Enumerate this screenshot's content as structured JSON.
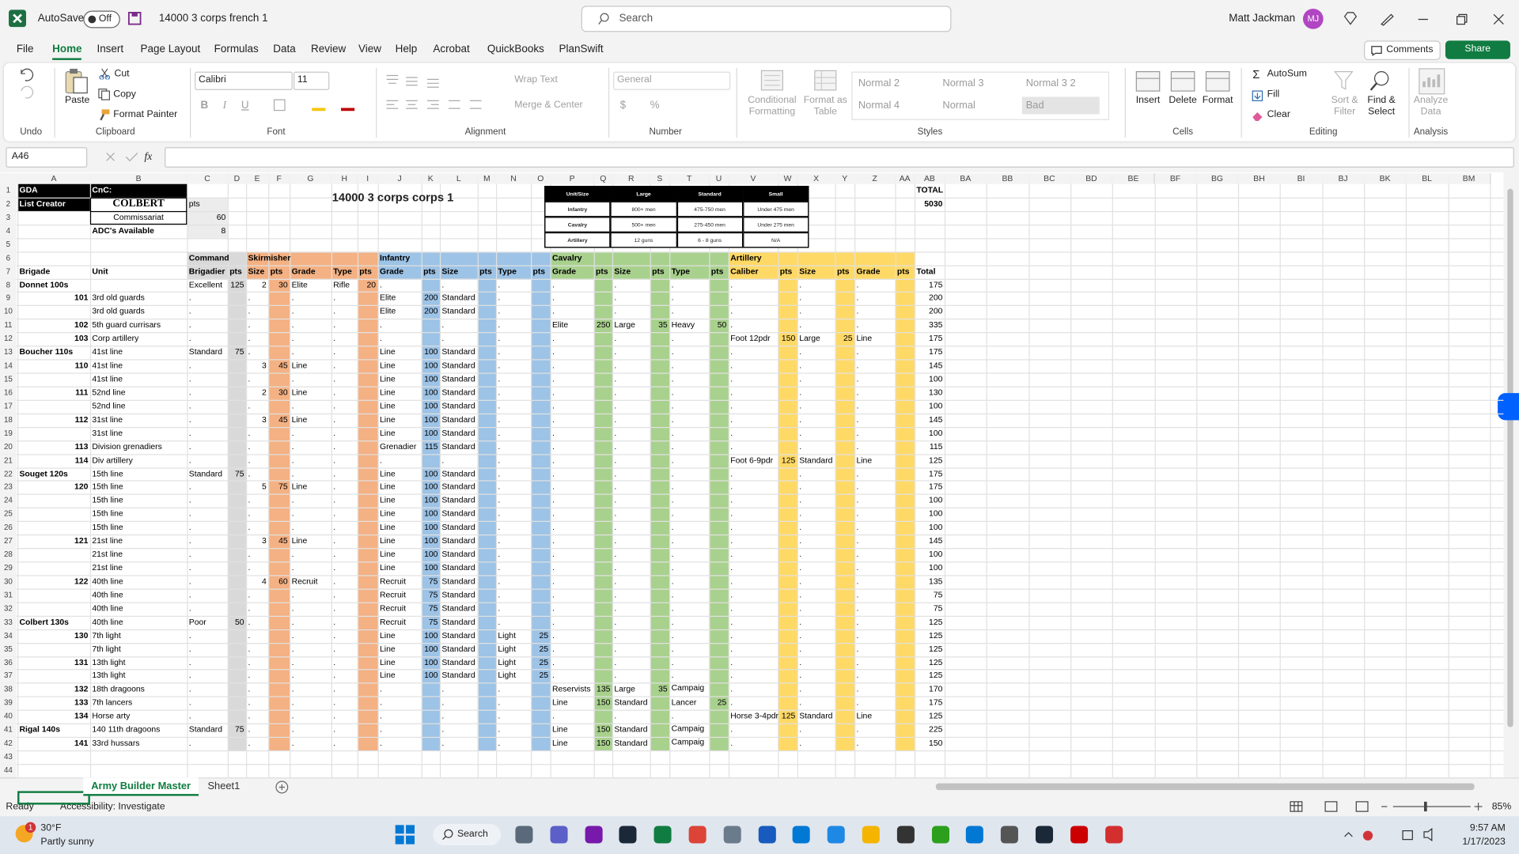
{
  "title_bar": {
    "autosave": "AutoSave",
    "toggle": "Off",
    "file_name": "14000 3 corps french 1",
    "search": "Search",
    "user": "Matt Jackman",
    "initials": "MJ"
  },
  "menu": {
    "tabs": [
      "File",
      "Home",
      "Insert",
      "Page Layout",
      "Formulas",
      "Data",
      "Review",
      "View",
      "Help",
      "Acrobat",
      "QuickBooks",
      "PlanSwift"
    ],
    "comments": "Comments",
    "share": "Share"
  },
  "ribbon": {
    "undo": {
      "label": "Undo"
    },
    "clipboard": {
      "paste": "Paste",
      "cut": "Cut",
      "copy": "Copy",
      "format_painter": "Format Painter",
      "label": "Clipboard"
    },
    "font": {
      "name": "Calibri",
      "size": "11",
      "bold": "B",
      "italic": "I",
      "underline": "U",
      "label": "Font"
    },
    "alignment": {
      "wrap": "Wrap Text",
      "merge": "Merge & Center",
      "label": "Alignment"
    },
    "number": {
      "format": "General",
      "currency": "$",
      "percent": "%",
      "label": "Number"
    },
    "styles": {
      "conditional": "Conditional Formatting",
      "table": "Format as Table",
      "gallery": [
        "Normal 2",
        "Normal 3",
        "Normal 3 2",
        "Normal 4",
        "Normal",
        "Bad"
      ],
      "label": "Styles"
    },
    "cells": {
      "insert": "Insert",
      "delete": "Delete",
      "format": "Format",
      "label": "Cells"
    },
    "editing": {
      "autosum": "AutoSum",
      "fill": "Fill",
      "clear": "Clear",
      "sort": "Sort & Filter",
      "find": "Find & Select",
      "label": "Editing"
    },
    "analysis": {
      "analyze": "Analyze Data",
      "label": "Analysis"
    }
  },
  "formula_bar": {
    "name_box": "A46",
    "fx": "fx"
  },
  "sheet": {
    "columns": [
      "A",
      "B",
      "C",
      "D",
      "E",
      "F",
      "G",
      "H",
      "I",
      "J",
      "K",
      "L",
      "M",
      "N",
      "O",
      "P",
      "Q",
      "R",
      "S",
      "T",
      "U",
      "V",
      "W",
      "X",
      "Y",
      "Z",
      "AA",
      "AB",
      "BA",
      "BB",
      "BC",
      "BD",
      "BE",
      "BF",
      "BG",
      "BH",
      "BI",
      "BJ",
      "BK",
      "BL",
      "BM"
    ],
    "row_numbers": [
      1,
      2,
      3,
      4,
      5,
      6,
      7,
      8,
      9,
      10,
      11,
      12,
      13,
      14,
      15,
      16,
      17,
      18,
      19,
      20,
      21,
      22,
      23,
      24,
      25,
      26,
      27,
      28,
      29,
      30,
      31,
      32,
      33,
      34,
      35,
      36,
      37,
      38,
      39,
      40,
      41,
      42,
      43,
      44
    ],
    "title": "14000 3 corps corps 1",
    "size_table": [
      [
        "Unit/Size",
        "Large",
        "Standard",
        "Small"
      ],
      [
        "Infantry",
        "800+ men",
        "475-750 men",
        "Under 475 men"
      ],
      [
        "Cavalry",
        "500+ men",
        "275-450 men",
        "Under 275 men"
      ],
      [
        "Artillery",
        "12 guns",
        "6 - 8 guns",
        "N/A"
      ]
    ],
    "grid": [
      [
        "GDA",
        "CnC:",
        null,
        null,
        null,
        null,
        null,
        null,
        null,
        null,
        null,
        null,
        null,
        null,
        null,
        null,
        null,
        null,
        null,
        null,
        null,
        null,
        null,
        null,
        null,
        null,
        null,
        "TOTAL"
      ],
      [
        "List Creator",
        "COLBERT",
        "pts",
        null,
        null,
        null,
        null,
        null,
        null,
        null,
        null,
        null,
        null,
        null,
        null,
        null,
        null,
        null,
        null,
        null,
        null,
        null,
        null,
        null,
        null,
        null,
        null,
        5030
      ],
      [
        null,
        "Commissariat",
        60
      ],
      [
        null,
        "ADC's Available",
        8
      ],
      [],
      [
        null,
        null,
        "Command",
        null,
        "Skirmisher",
        null,
        null,
        null,
        null,
        "Infantry",
        null,
        null,
        null,
        null,
        null,
        "Cavalry",
        null,
        null,
        null,
        null,
        null,
        "Artillery"
      ],
      [
        "Brigade",
        "Unit",
        "Brigadier",
        "pts",
        "Size",
        "pts",
        "Grade",
        "Type",
        "pts",
        "Grade",
        "pts",
        "Size",
        "pts",
        "Type",
        "pts",
        "Grade",
        "pts",
        "Size",
        "pts",
        "Type",
        "pts",
        "Caliber",
        "pts",
        "Size",
        "pts",
        "Grade",
        "pts",
        "Total"
      ],
      [
        "Donnet 100s",
        null,
        "Excellent",
        125,
        2,
        30,
        "Elite",
        "Rifle",
        20,
        ".",
        null,
        ".",
        null,
        ".",
        null,
        ".",
        null,
        ".",
        null,
        ".",
        null,
        ".",
        null,
        ".",
        null,
        ".",
        null,
        175
      ],
      [
        101,
        "3rd old guards",
        ".",
        null,
        ".",
        null,
        ".",
        ".",
        null,
        "Elite",
        200,
        "Standard",
        null,
        ".",
        null,
        ".",
        null,
        ".",
        null,
        ".",
        null,
        ".",
        null,
        ".",
        null,
        ".",
        null,
        200
      ],
      [
        null,
        "3rd old guards",
        ".",
        null,
        ".",
        null,
        ".",
        ".",
        null,
        "Elite",
        200,
        "Standard",
        null,
        ".",
        null,
        ".",
        null,
        ".",
        null,
        ".",
        null,
        ".",
        null,
        ".",
        null,
        ".",
        null,
        200
      ],
      [
        102,
        "5th guard currisars",
        ".",
        null,
        ".",
        null,
        ".",
        ".",
        null,
        ".",
        null,
        ".",
        null,
        ".",
        null,
        "Elite",
        250,
        "Large",
        35,
        "Heavy",
        50,
        ".",
        null,
        ".",
        null,
        ".",
        null,
        335
      ],
      [
        103,
        "Corp artillery",
        ".",
        null,
        ".",
        null,
        ".",
        ".",
        null,
        ".",
        null,
        ".",
        null,
        ".",
        null,
        ".",
        null,
        ".",
        null,
        ".",
        null,
        "Foot 12pdr",
        150,
        "Large",
        25,
        "Line",
        null,
        175
      ],
      [
        "Boucher 110s",
        "41st line",
        "Standard",
        75,
        ".",
        null,
        ".",
        ".",
        null,
        "Line",
        100,
        "Standard",
        null,
        ".",
        null,
        ".",
        null,
        ".",
        null,
        ".",
        null,
        ".",
        null,
        ".",
        null,
        ".",
        null,
        175
      ],
      [
        110,
        "41st line",
        ".",
        null,
        3,
        45,
        "Line",
        ".",
        null,
        "Line",
        100,
        "Standard",
        null,
        ".",
        null,
        ".",
        null,
        ".",
        null,
        ".",
        null,
        ".",
        null,
        ".",
        null,
        ".",
        null,
        145
      ],
      [
        null,
        "41st line",
        ".",
        null,
        ".",
        null,
        ".",
        ".",
        null,
        "Line",
        100,
        "Standard",
        null,
        ".",
        null,
        ".",
        null,
        ".",
        null,
        ".",
        null,
        ".",
        null,
        ".",
        null,
        ".",
        null,
        100
      ],
      [
        111,
        "52nd line",
        ".",
        null,
        2,
        30,
        "Line",
        ".",
        null,
        "Line",
        100,
        "Standard",
        null,
        ".",
        null,
        ".",
        null,
        ".",
        null,
        ".",
        null,
        ".",
        null,
        ".",
        null,
        ".",
        null,
        130
      ],
      [
        null,
        "52nd line",
        ".",
        null,
        ".",
        null,
        ".",
        ".",
        null,
        "Line",
        100,
        "Standard",
        null,
        ".",
        null,
        ".",
        null,
        ".",
        null,
        ".",
        null,
        ".",
        null,
        ".",
        null,
        ".",
        null,
        100
      ],
      [
        112,
        "31st line",
        ".",
        null,
        3,
        45,
        "Line",
        ".",
        null,
        "Line",
        100,
        "Standard",
        null,
        ".",
        null,
        ".",
        null,
        ".",
        null,
        ".",
        null,
        ".",
        null,
        ".",
        null,
        ".",
        null,
        145
      ],
      [
        null,
        "31st line",
        ".",
        null,
        ".",
        null,
        ".",
        ".",
        null,
        "Line",
        100,
        "Standard",
        null,
        ".",
        null,
        ".",
        null,
        ".",
        null,
        ".",
        null,
        ".",
        null,
        ".",
        null,
        ".",
        null,
        100
      ],
      [
        113,
        "Division grenadiers",
        ".",
        null,
        ".",
        null,
        ".",
        ".",
        null,
        "Grenadier",
        115,
        "Standard",
        null,
        ".",
        null,
        ".",
        null,
        ".",
        null,
        ".",
        null,
        ".",
        null,
        ".",
        null,
        ".",
        null,
        115
      ],
      [
        114,
        "Div artillery",
        ".",
        null,
        ".",
        null,
        ".",
        ".",
        null,
        ".",
        null,
        ".",
        null,
        ".",
        null,
        ".",
        null,
        ".",
        null,
        ".",
        null,
        "Foot 6-9pdr",
        125,
        "Standard",
        null,
        "Line",
        null,
        125
      ],
      [
        "Souget 120s",
        "15th line",
        "Standard",
        75,
        ".",
        null,
        ".",
        ".",
        null,
        "Line",
        100,
        "Standard",
        null,
        ".",
        null,
        ".",
        null,
        ".",
        null,
        ".",
        null,
        ".",
        null,
        ".",
        null,
        ".",
        null,
        175
      ],
      [
        120,
        "15th line",
        ".",
        null,
        5,
        75,
        "Line",
        ".",
        null,
        "Line",
        100,
        "Standard",
        null,
        ".",
        null,
        ".",
        null,
        ".",
        null,
        ".",
        null,
        ".",
        null,
        ".",
        null,
        ".",
        null,
        175
      ],
      [
        null,
        "15th line",
        ".",
        null,
        ".",
        null,
        ".",
        ".",
        null,
        "Line",
        100,
        "Standard",
        null,
        ".",
        null,
        ".",
        null,
        ".",
        null,
        ".",
        null,
        ".",
        null,
        ".",
        null,
        ".",
        null,
        100
      ],
      [
        null,
        "15th line",
        ".",
        null,
        ".",
        null,
        ".",
        ".",
        null,
        "Line",
        100,
        "Standard",
        null,
        ".",
        null,
        ".",
        null,
        ".",
        null,
        ".",
        null,
        ".",
        null,
        ".",
        null,
        ".",
        null,
        100
      ],
      [
        null,
        "15th line",
        ".",
        null,
        ".",
        null,
        ".",
        ".",
        null,
        "Line",
        100,
        "Standard",
        null,
        ".",
        null,
        ".",
        null,
        ".",
        null,
        ".",
        null,
        ".",
        null,
        ".",
        null,
        ".",
        null,
        100
      ],
      [
        121,
        "21st line",
        ".",
        null,
        3,
        45,
        "Line",
        ".",
        null,
        "Line",
        100,
        "Standard",
        null,
        ".",
        null,
        ".",
        null,
        ".",
        null,
        ".",
        null,
        ".",
        null,
        ".",
        null,
        ".",
        null,
        145
      ],
      [
        null,
        "21st line",
        ".",
        null,
        ".",
        null,
        ".",
        ".",
        null,
        "Line",
        100,
        "Standard",
        null,
        ".",
        null,
        ".",
        null,
        ".",
        null,
        ".",
        null,
        ".",
        null,
        ".",
        null,
        ".",
        null,
        100
      ],
      [
        null,
        "21st line",
        ".",
        null,
        ".",
        null,
        ".",
        ".",
        null,
        "Line",
        100,
        "Standard",
        null,
        ".",
        null,
        ".",
        null,
        ".",
        null,
        ".",
        null,
        ".",
        null,
        ".",
        null,
        ".",
        null,
        100
      ],
      [
        122,
        "40th line",
        ".",
        null,
        4,
        60,
        "Recruit",
        ".",
        null,
        "Recruit",
        75,
        "Standard",
        null,
        ".",
        null,
        ".",
        null,
        ".",
        null,
        ".",
        null,
        ".",
        null,
        ".",
        null,
        ".",
        null,
        135
      ],
      [
        null,
        "40th line",
        ".",
        null,
        ".",
        null,
        ".",
        ".",
        null,
        "Recruit",
        75,
        "Standard",
        null,
        ".",
        null,
        ".",
        null,
        ".",
        null,
        ".",
        null,
        ".",
        null,
        ".",
        null,
        ".",
        null,
        75
      ],
      [
        null,
        "40th line",
        ".",
        null,
        ".",
        null,
        ".",
        ".",
        null,
        "Recruit",
        75,
        "Standard",
        null,
        ".",
        null,
        ".",
        null,
        ".",
        null,
        ".",
        null,
        ".",
        null,
        ".",
        null,
        ".",
        null,
        75
      ],
      [
        "Colbert 130s",
        "40th line",
        "Poor",
        50,
        ".",
        null,
        ".",
        ".",
        null,
        "Recruit",
        75,
        "Standard",
        null,
        ".",
        null,
        ".",
        null,
        ".",
        null,
        ".",
        null,
        ".",
        null,
        ".",
        null,
        ".",
        null,
        125
      ],
      [
        130,
        "7th light",
        ".",
        null,
        ".",
        null,
        ".",
        ".",
        null,
        "Line",
        100,
        "Standard",
        null,
        "Light",
        25,
        ".",
        null,
        ".",
        null,
        ".",
        null,
        ".",
        null,
        ".",
        null,
        ".",
        null,
        125
      ],
      [
        null,
        "7th light",
        ".",
        null,
        ".",
        null,
        ".",
        ".",
        null,
        "Line",
        100,
        "Standard",
        null,
        "Light",
        25,
        ".",
        null,
        ".",
        null,
        ".",
        null,
        ".",
        null,
        ".",
        null,
        ".",
        null,
        125
      ],
      [
        131,
        "13th light",
        ".",
        null,
        ".",
        null,
        ".",
        ".",
        null,
        "Line",
        100,
        "Standard",
        null,
        "Light",
        25,
        ".",
        null,
        ".",
        null,
        ".",
        null,
        ".",
        null,
        ".",
        null,
        ".",
        null,
        125
      ],
      [
        null,
        "13th light",
        ".",
        null,
        ".",
        null,
        ".",
        ".",
        null,
        "Line",
        100,
        "Standard",
        null,
        "Light",
        25,
        ".",
        null,
        ".",
        null,
        ".",
        null,
        ".",
        null,
        ".",
        null,
        ".",
        null,
        125
      ],
      [
        132,
        "18th dragoons",
        ".",
        null,
        ".",
        null,
        ".",
        ".",
        null,
        ".",
        null,
        ".",
        null,
        ".",
        null,
        "Reservists",
        135,
        "Large",
        35,
        "Campaig",
        null,
        ".",
        null,
        ".",
        null,
        ".",
        null,
        170
      ],
      [
        133,
        "7th lancers",
        ".",
        null,
        ".",
        null,
        ".",
        ".",
        null,
        ".",
        null,
        ".",
        null,
        ".",
        null,
        "Line",
        150,
        "Standard",
        null,
        "Lancer",
        25,
        ".",
        null,
        ".",
        null,
        ".",
        null,
        175
      ],
      [
        134,
        "Horse arty",
        ".",
        null,
        ".",
        null,
        ".",
        ".",
        null,
        ".",
        null,
        ".",
        null,
        ".",
        null,
        ".",
        null,
        ".",
        null,
        ".",
        null,
        "Horse 3-4pdr",
        125,
        "Standard",
        null,
        "Line",
        null,
        125
      ],
      [
        "Rigal 140s",
        "140 11th dragoons",
        "Standard",
        75,
        ".",
        null,
        ".",
        ".",
        null,
        ".",
        null,
        ".",
        null,
        ".",
        null,
        "Line",
        150,
        "Standard",
        null,
        "Campaig",
        null,
        ".",
        null,
        ".",
        null,
        ".",
        null,
        225
      ],
      [
        141,
        "33rd hussars",
        ".",
        null,
        ".",
        null,
        ".",
        ".",
        null,
        ".",
        null,
        ".",
        null,
        ".",
        null,
        "Line",
        150,
        "Standard",
        null,
        "Campaig",
        null,
        ".",
        null,
        ".",
        null,
        ".",
        null,
        150
      ],
      [],
      []
    ]
  },
  "tabs": [
    "Army Builder Master",
    "Sheet1"
  ],
  "status": {
    "ready": "Ready",
    "accessibility": "Accessibility: Investigate",
    "zoom": "85%"
  },
  "taskbar": {
    "temperature": "30°F",
    "weather": "Partly sunny",
    "search": "Search",
    "time": "9:57 AM",
    "date": "1/17/2023",
    "badge": 1
  }
}
